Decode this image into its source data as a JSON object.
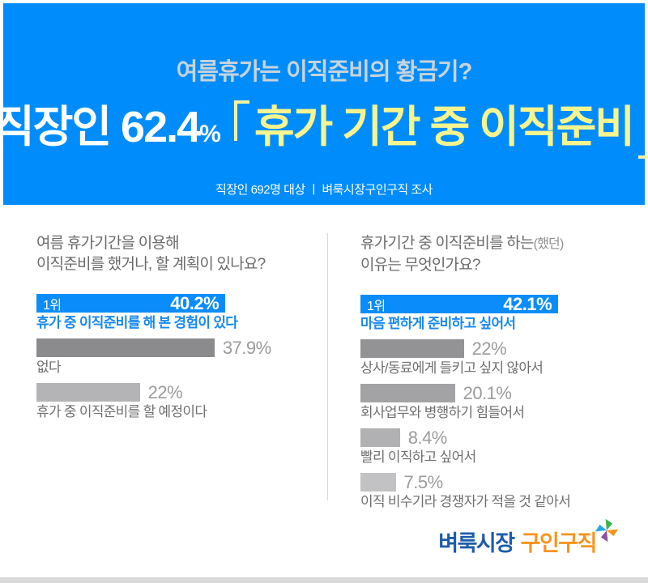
{
  "header": {
    "bg_color": "#008dfb",
    "subtitle": "여름휴가는 이직준비의 황금기?",
    "subtitle_color": "#c9d3da",
    "title_main": "직장인 62.4",
    "title_percent_sign": "%",
    "title_highlight": "휴가 기간 중 이직준비",
    "highlight_color": "#f8f58e",
    "source": "직장인 692명 대상  ㅣ  벼룩시장구인구직 조사"
  },
  "chart_data": [
    {
      "type": "bar",
      "orientation": "horizontal",
      "title": "여름 휴가기간을 이용해 이직준비를 했거나, 할 계획이 있나요?",
      "question_line1": "여름 휴가기간을 이용해",
      "question_suffix": "",
      "question_line2": "이직준비를 했거나, 할 계획이 있나요?",
      "rank_badge": "1위",
      "categories": [
        "휴가 중 이직준비를 해 본 경험이 있다",
        "없다",
        "휴가 중 이직준비를 할 예정이다"
      ],
      "values": [
        40.2,
        37.9,
        22
      ],
      "value_labels": [
        "40.2%",
        "37.9%",
        "22%"
      ],
      "bar_colors": [
        "#0a8dfa",
        "#8b8b8e",
        "#b4b4b6"
      ],
      "xlim": [
        0,
        60
      ],
      "grid": false,
      "legend": false
    },
    {
      "type": "bar",
      "orientation": "horizontal",
      "title": "휴가기간 중 이직준비를 하는(했던) 이유는 무엇인가요?",
      "question_line1": "휴가기간 중 이직준비를 하는",
      "question_suffix": "(했던)",
      "question_line2": "이유는 무엇인가요?",
      "rank_badge": "1위",
      "categories": [
        "마음 편하게 준비하고 싶어서",
        "상사/동료에게 들키고 싶지 않아서",
        "회사업무와 병행하기 힘들어서",
        "빨리 이직하고 싶어서",
        "이직 비수기라 경쟁자가 적을 것 같아서"
      ],
      "values": [
        42.1,
        22,
        20.1,
        8.4,
        7.5
      ],
      "value_labels": [
        "42.1%",
        "22%",
        "20.1%",
        "8.4%",
        "7.5%"
      ],
      "bar_colors": [
        "#0a8dfa",
        "#939395",
        "#a3a3a5",
        "#b1b1b3",
        "#c2c2c4"
      ],
      "xlim": [
        0,
        60
      ],
      "grid": false,
      "legend": false
    }
  ],
  "footer": {
    "logo_primary": "벼룩시장",
    "logo_secondary": "구인구직",
    "logo_primary_color": "#1d5cab",
    "logo_secondary_color": "#f7941d"
  }
}
